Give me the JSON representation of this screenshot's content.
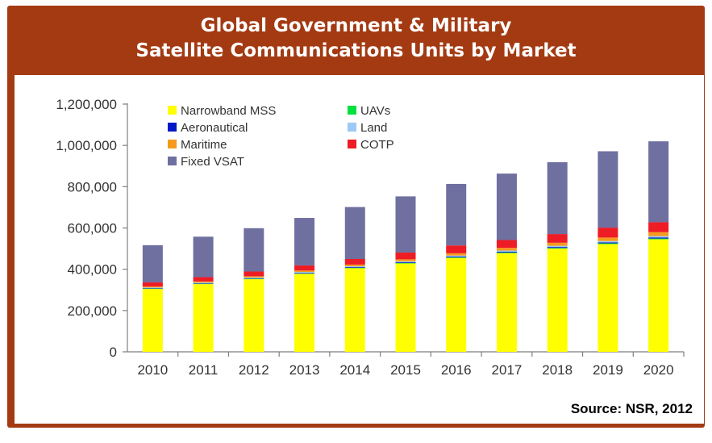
{
  "title": {
    "line1": "Global Government & Military",
    "line2": "Satellite Communications Units by Market"
  },
  "source": "Source: NSR, 2012",
  "colors": {
    "frame": "#a33a12",
    "Narrowband MSS": "#ffff00",
    "UAVs": "#00e040",
    "Aeronautical": "#0018c8",
    "Land": "#9cc9f5",
    "Maritime": "#f59a1e",
    "COTP": "#ee1c24",
    "Fixed VSAT": "#6f6fa0"
  },
  "chart_data": {
    "type": "bar",
    "stacked": true,
    "categories": [
      "2010",
      "2011",
      "2012",
      "2013",
      "2014",
      "2015",
      "2016",
      "2017",
      "2018",
      "2019",
      "2020"
    ],
    "series": [
      {
        "name": "Narrowband MSS",
        "values": [
          305000,
          328000,
          352000,
          378000,
          405000,
          428000,
          455000,
          478000,
          500000,
          522000,
          545000
        ]
      },
      {
        "name": "UAVs",
        "values": [
          1500,
          1700,
          1900,
          2100,
          2300,
          2500,
          2700,
          3000,
          3200,
          3500,
          3800
        ]
      },
      {
        "name": "Aeronautical",
        "values": [
          2000,
          2200,
          2400,
          2700,
          3000,
          3300,
          3600,
          4000,
          4400,
          4800,
          5200
        ]
      },
      {
        "name": "Land",
        "values": [
          3000,
          3300,
          3600,
          3900,
          4200,
          4600,
          5000,
          5400,
          5800,
          6200,
          6600
        ]
      },
      {
        "name": "Maritime",
        "values": [
          5000,
          5500,
          6000,
          7000,
          8000,
          9500,
          11000,
          13000,
          15000,
          17000,
          19000
        ]
      },
      {
        "name": "COTP",
        "values": [
          20000,
          21000,
          23000,
          25000,
          27000,
          33000,
          38000,
          38000,
          42000,
          48000,
          48000
        ]
      },
      {
        "name": "Fixed VSAT",
        "values": [
          180000,
          196000,
          210000,
          230000,
          252000,
          272000,
          298000,
          322000,
          348000,
          370000,
          392000
        ]
      }
    ],
    "legend": [
      "Narrowband MSS",
      "UAVs",
      "Aeronautical",
      "Land",
      "Maritime",
      "COTP",
      "Fixed VSAT"
    ],
    "legend_placement": "top-left",
    "yticks": [
      "0",
      "200,000",
      "400,000",
      "600,000",
      "800,000",
      "1,000,000",
      "1,200,000"
    ],
    "ylim": [
      0,
      1200000
    ],
    "xlabel": "",
    "ylabel": "",
    "grid": false
  }
}
